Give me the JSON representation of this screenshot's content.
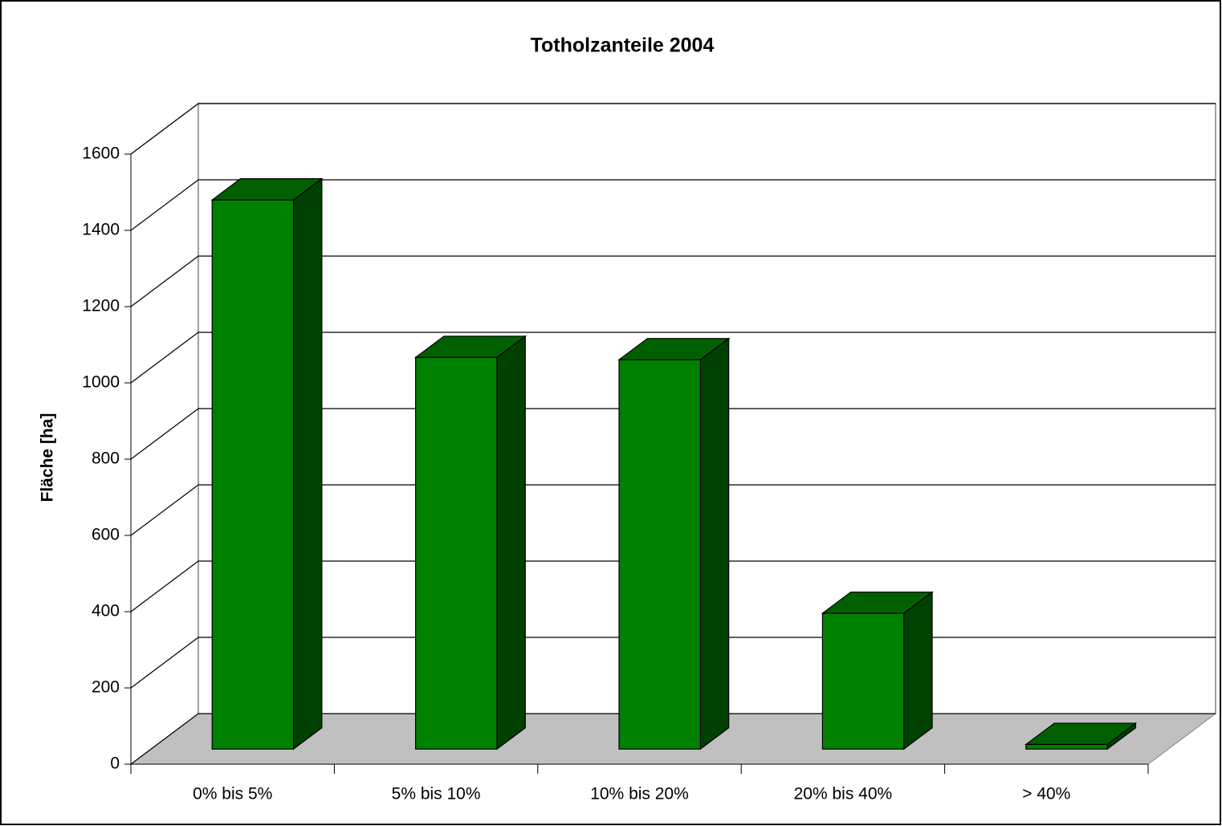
{
  "chart_data": {
    "type": "bar3d",
    "title": "Totholzanteile 2004",
    "y_label": "Fläche [ha]",
    "categories": [
      "0% bis 5%",
      "5% bis 10%",
      "10% bis 20%",
      "20% bis 40%",
      "> 40%"
    ],
    "values": [
      1440,
      1027,
      1021,
      356,
      12
    ],
    "color": "#008000",
    "ylim": [
      0,
      1600
    ],
    "yticks": [
      0,
      200,
      400,
      600,
      800,
      1000,
      1200,
      1400,
      1600
    ],
    "grid": true
  }
}
